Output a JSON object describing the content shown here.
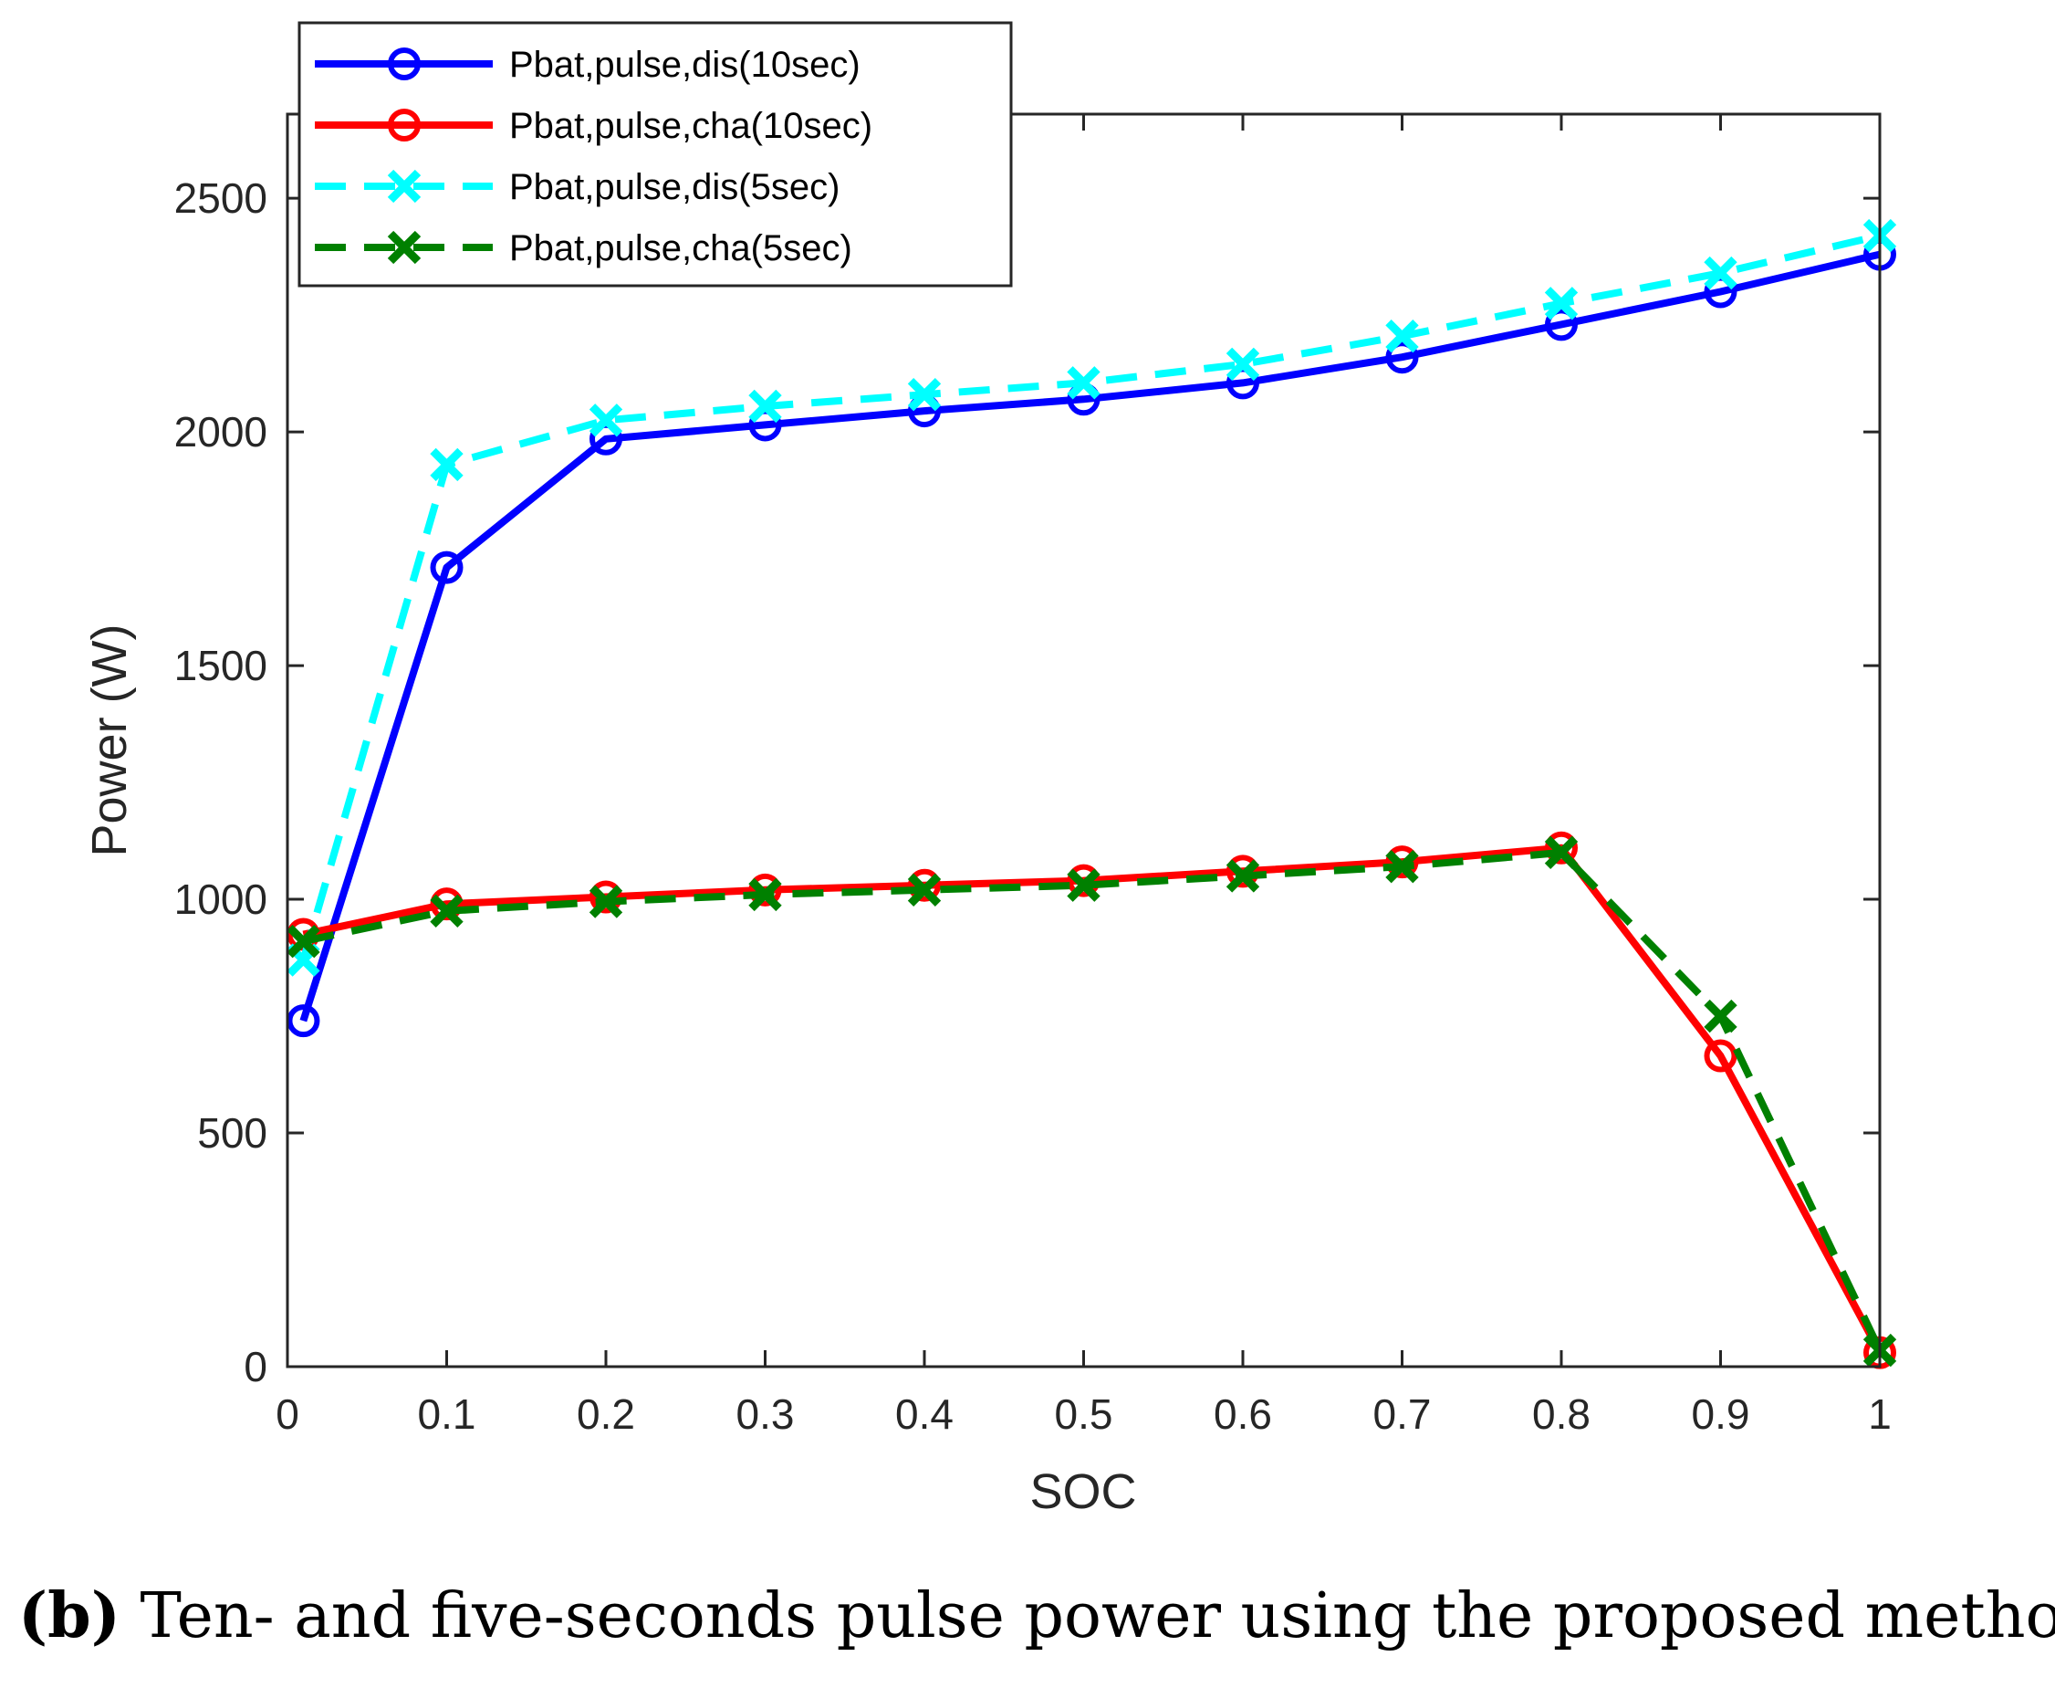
{
  "chart_data": {
    "type": "line",
    "title": "",
    "xlabel": "SOC",
    "ylabel": "Power (W)",
    "xlim": [
      0,
      1
    ],
    "ylim": [
      0,
      2500
    ],
    "xticks": [
      "0",
      "0.1",
      "0.2",
      "0.3",
      "0.4",
      "0.5",
      "0.6",
      "0.7",
      "0.8",
      "0.9",
      "1"
    ],
    "yticks": [
      "0",
      "500",
      "1000",
      "1500",
      "2000",
      "2500"
    ],
    "x": [
      0.01,
      0.1,
      0.2,
      0.3,
      0.4,
      0.5,
      0.6,
      0.7,
      0.8,
      0.9,
      1.0
    ],
    "legend_position": "top-left",
    "series": [
      {
        "name": "Pbat,pulse,dis(10sec)",
        "color": "#0000ff",
        "line_style": "solid",
        "marker": "circle",
        "values": [
          740,
          1710,
          1985,
          2015,
          2045,
          2070,
          2105,
          2160,
          2230,
          2300,
          2380
        ]
      },
      {
        "name": "Pbat,pulse,cha(10sec)",
        "color": "#ff0000",
        "line_style": "solid",
        "marker": "circle",
        "values": [
          925,
          990,
          1005,
          1020,
          1030,
          1040,
          1060,
          1080,
          1110,
          665,
          30
        ]
      },
      {
        "name": "Pbat,pulse,dis(5sec)",
        "color": "#00ffff",
        "line_style": "dashed",
        "marker": "x",
        "values": [
          870,
          1930,
          2025,
          2055,
          2080,
          2105,
          2145,
          2205,
          2275,
          2340,
          2420
        ]
      },
      {
        "name": "Pbat,pulse,cha(5sec)",
        "color": "#008000",
        "line_style": "dashed",
        "marker": "x",
        "values": [
          910,
          975,
          995,
          1010,
          1020,
          1030,
          1050,
          1070,
          1100,
          750,
          35
        ]
      }
    ]
  },
  "caption": {
    "label": "(b)",
    "text": " Ten- and five-seconds pulse power using the proposed method"
  }
}
